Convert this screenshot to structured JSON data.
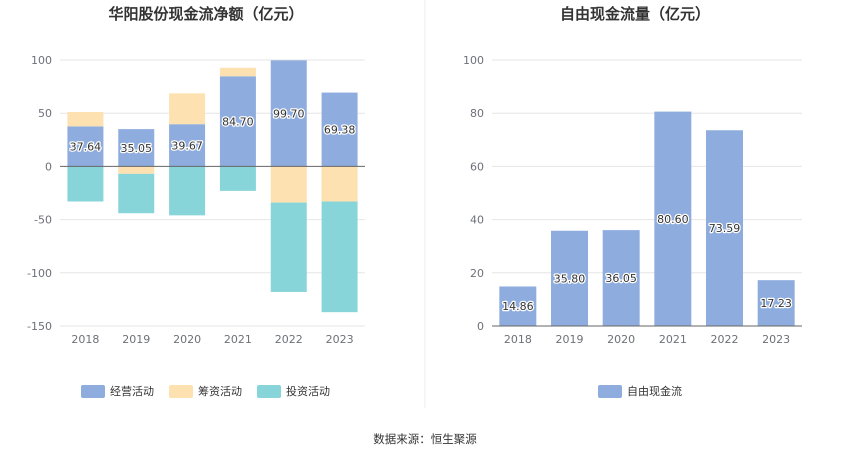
{
  "source": "数据来源：恒生聚源",
  "colors": {
    "operating": "#8eadde",
    "financing": "#fde1b0",
    "investing": "#88d5d9",
    "free": "#8eadde",
    "grid": "#e6e6e6",
    "axis": "#666666"
  },
  "chart_data": [
    {
      "type": "bar",
      "stacked": true,
      "title": "华阳股份现金流净额（亿元）",
      "categories": [
        "2018",
        "2019",
        "2020",
        "2021",
        "2022",
        "2023"
      ],
      "ylim": [
        -150,
        100
      ],
      "yticks": [
        100,
        50,
        0,
        -50,
        -100,
        -150
      ],
      "legend_position": "bottom",
      "series": [
        {
          "name": "经营活动",
          "key": "operating",
          "values": [
            37.64,
            35.05,
            39.67,
            84.7,
            99.7,
            69.38
          ],
          "labels": [
            "37.64",
            "35.05",
            "39.67",
            "84.70",
            "99.70",
            "69.38"
          ]
        },
        {
          "name": "筹资活动",
          "key": "financing",
          "values": [
            13.5,
            -7,
            29,
            8,
            -34,
            -33
          ]
        },
        {
          "name": "投资活动",
          "key": "investing",
          "values": [
            -33,
            -37,
            -46,
            -23,
            -84,
            -104
          ]
        }
      ]
    },
    {
      "type": "bar",
      "title": "自由现金流量（亿元）",
      "categories": [
        "2018",
        "2019",
        "2020",
        "2021",
        "2022",
        "2023"
      ],
      "ylim": [
        0,
        100
      ],
      "yticks": [
        100,
        80,
        60,
        40,
        20,
        0
      ],
      "legend_position": "bottom",
      "series": [
        {
          "name": "自由现金流",
          "key": "free",
          "values": [
            14.86,
            35.8,
            36.05,
            80.6,
            73.59,
            17.23
          ],
          "labels": [
            "14.86",
            "35.80",
            "36.05",
            "80.60",
            "73.59",
            "17.23"
          ]
        }
      ]
    }
  ]
}
